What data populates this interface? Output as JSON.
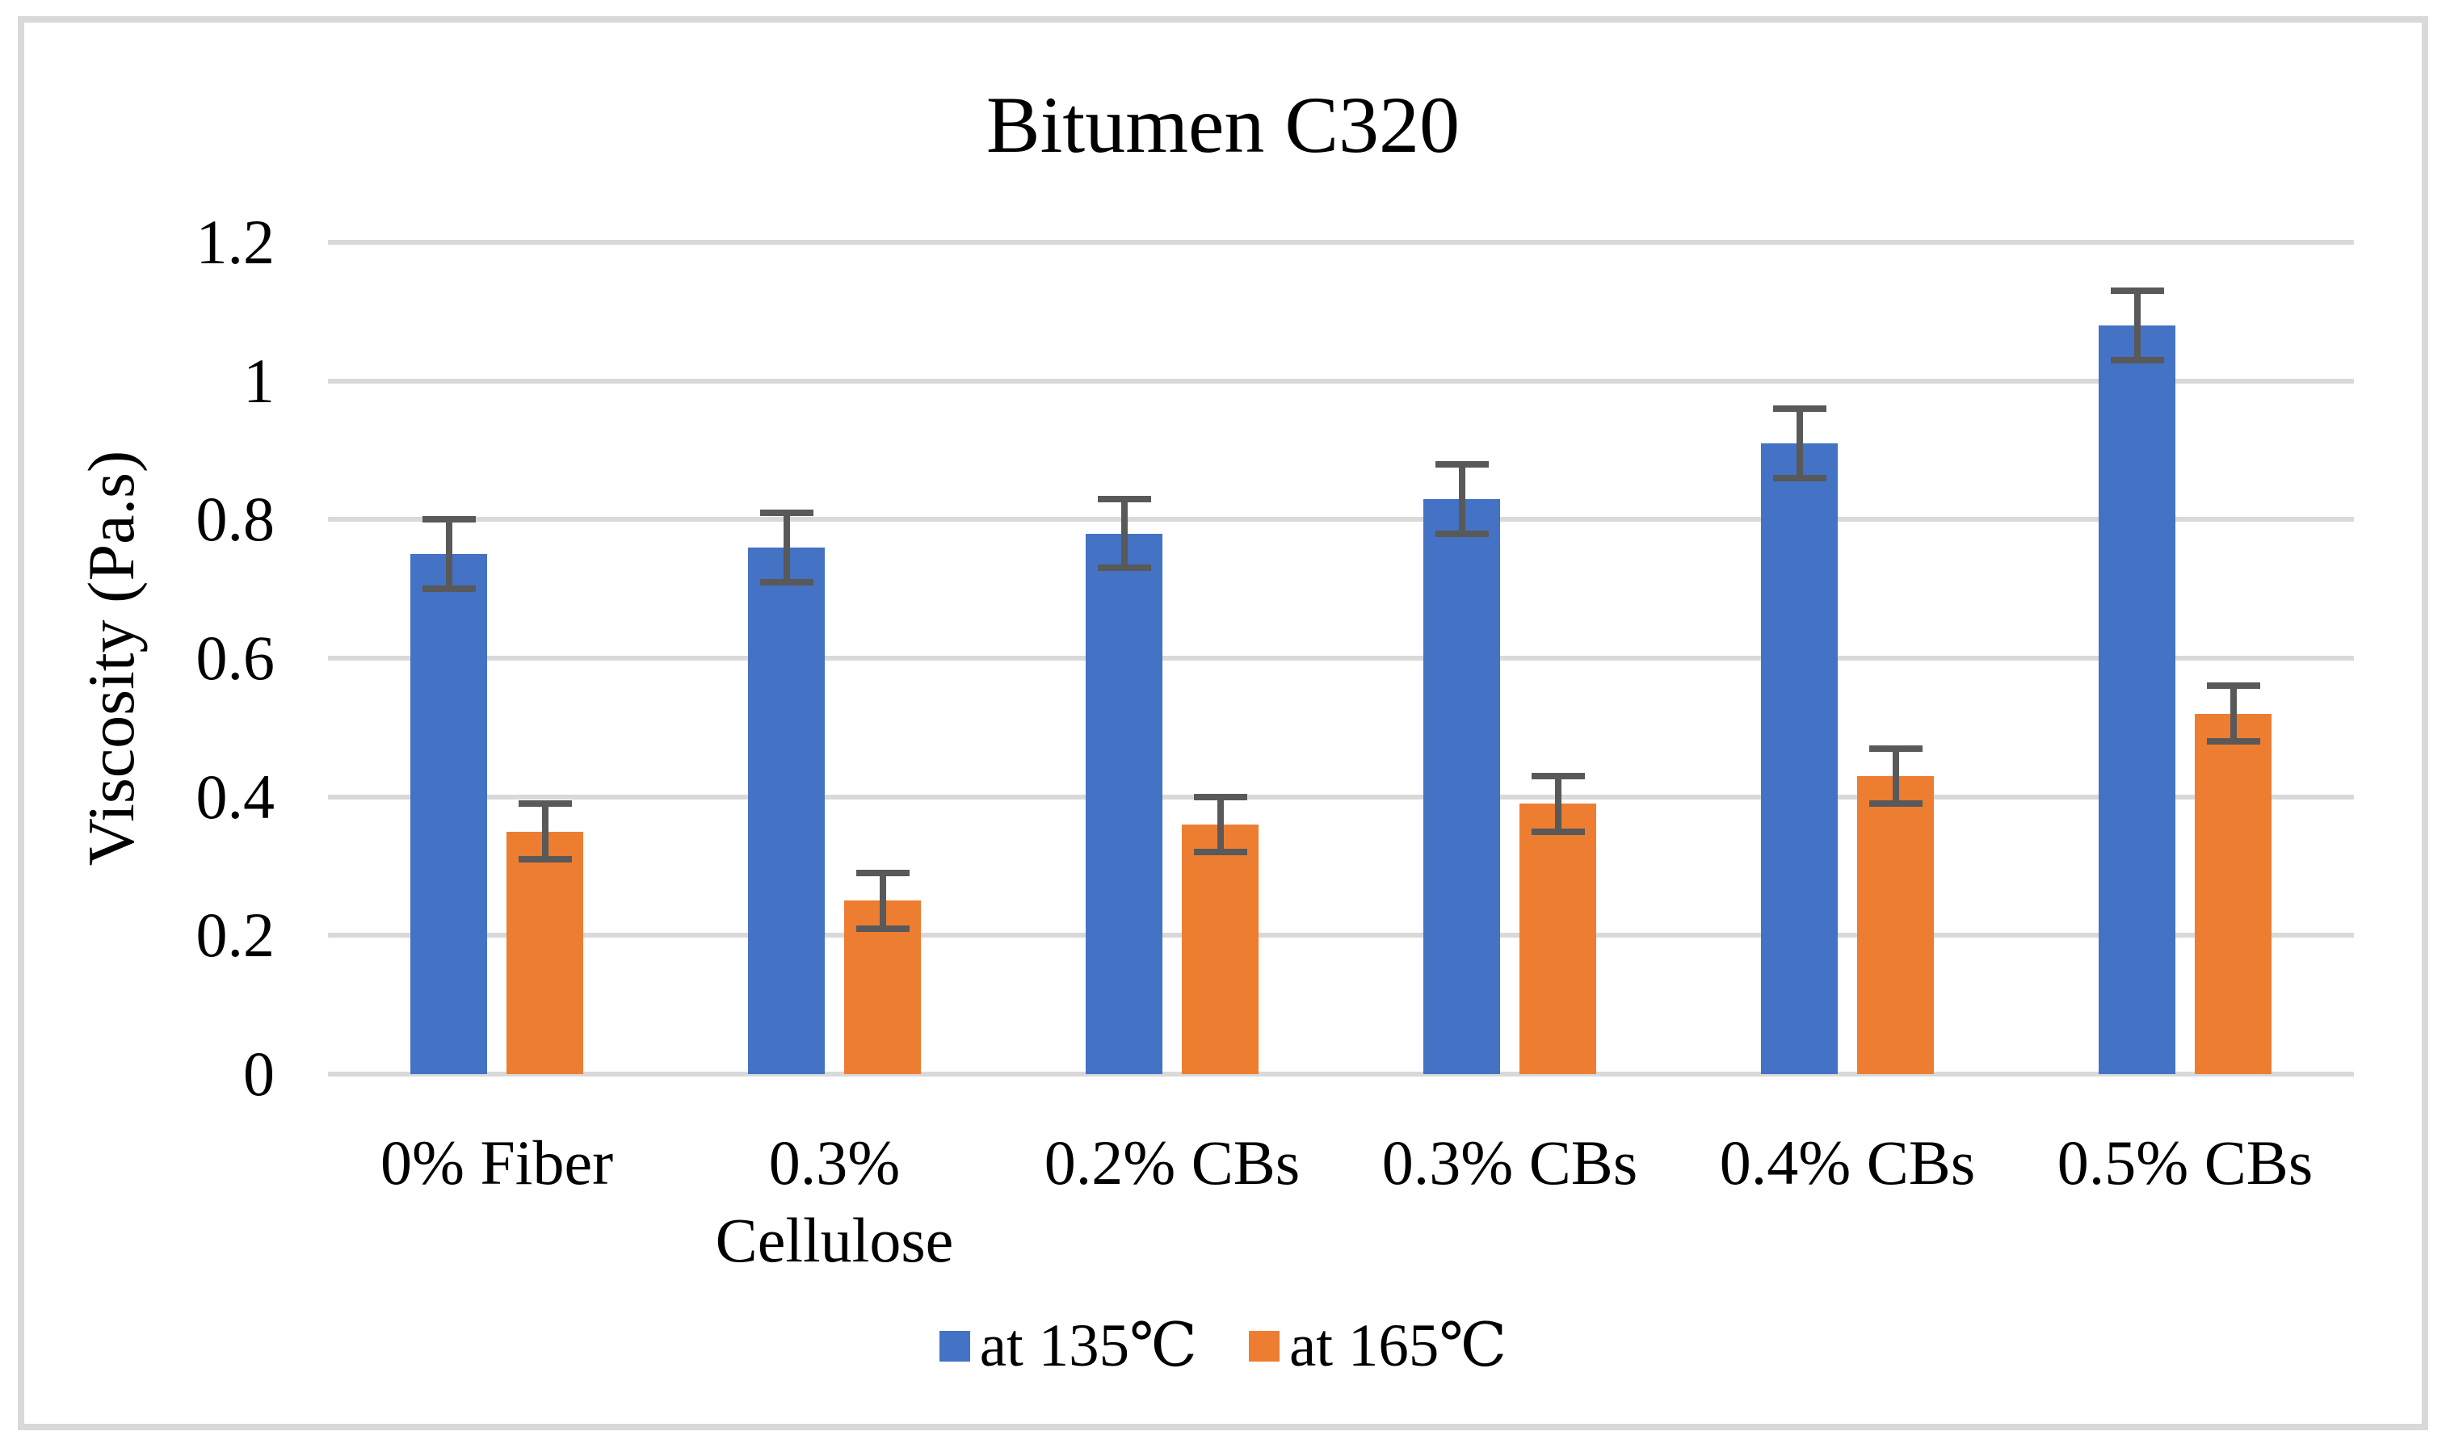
{
  "chart_data": {
    "type": "bar",
    "title": "Bitumen C320",
    "xlabel": "",
    "ylabel": "Viscosity (Pa.s)",
    "categories": [
      "0% Fiber",
      "0.3% Cellulose",
      "0.2% CBs",
      "0.3% CBs",
      "0.4% CBs",
      "0.5% CBs"
    ],
    "series": [
      {
        "name": "at 135℃",
        "color": "#4472C4",
        "values": [
          0.75,
          0.76,
          0.78,
          0.83,
          0.91,
          1.08
        ],
        "errors": [
          0.05,
          0.05,
          0.05,
          0.05,
          0.05,
          0.05
        ]
      },
      {
        "name": "at 165℃",
        "color": "#ED7D31",
        "values": [
          0.35,
          0.25,
          0.36,
          0.39,
          0.43,
          0.52
        ],
        "errors": [
          0.04,
          0.04,
          0.04,
          0.04,
          0.04,
          0.04
        ]
      }
    ],
    "ylim": [
      0,
      1.2
    ],
    "yticks": [
      0,
      0.2,
      0.4,
      0.6,
      0.8,
      1,
      1.2
    ],
    "ytick_labels": [
      "0",
      "0.2",
      "0.4",
      "0.6",
      "0.8",
      "1",
      "1.2"
    ],
    "grid": true,
    "legend_position": "bottom",
    "colors": {
      "gridline": "#D9D9D9",
      "error_bar": "#595959",
      "frame_border": "#D9D9D9",
      "text": "#000000",
      "background": "#FFFFFF"
    }
  }
}
